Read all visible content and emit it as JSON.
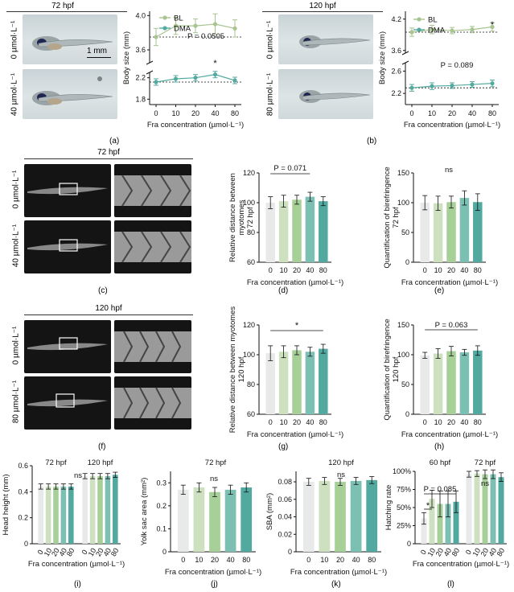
{
  "colors": {
    "c0": "#e8e9e9",
    "c1": "#cde0c0",
    "c2": "#a7cf98",
    "c3": "#7cc0b3",
    "c4": "#52a9a0",
    "bl": "#a8c48f",
    "dma": "#55aaa0"
  },
  "photos": {
    "a": {
      "title": "72 hpf",
      "row1": "0 µmol·L⁻¹",
      "row2": "40 µmol·L⁻¹",
      "scalebar": "1 mm"
    },
    "b": {
      "title": "120 hpf",
      "row1": "0 µmol·L⁻¹",
      "row2": "80 µmol·L⁻¹"
    },
    "c": {
      "title": "72 hpf",
      "row1": "0 µmol·L⁻¹",
      "row2": "40 µmol·L⁻¹"
    },
    "f": {
      "title": "120 hpf",
      "row1": "0 µmol·L⁻¹",
      "row2": "80 µmol·L⁻¹"
    }
  },
  "panel_labels": {
    "a": "(a)",
    "b": "(b)",
    "c": "(c)",
    "d": "(d)",
    "e": "(e)",
    "f": "(f)",
    "g": "(g)",
    "h": "(h)",
    "i": "(i)",
    "j": "(j)",
    "k": "(k)",
    "l": "(l)"
  },
  "chart_data": [
    {
      "id": "a",
      "type": "line",
      "title": "",
      "xlabel": "Fra concentration (µmol·L⁻¹)",
      "ylabel": "Body size (mm)",
      "categories": [
        "0",
        "10",
        "20",
        "40",
        "80"
      ],
      "yticks": [
        "1.8",
        "2.2",
        "3.6",
        "4.0"
      ],
      "legend": [
        "BL",
        "DMA"
      ],
      "series": [
        {
          "name": "BL",
          "values": [
            3.75,
            3.88,
            3.88,
            3.9,
            3.85
          ],
          "errors": [
            0.1,
            0.1,
            0.08,
            0.12,
            0.1
          ]
        },
        {
          "name": "DMA",
          "values": [
            2.12,
            2.18,
            2.2,
            2.26,
            2.15
          ],
          "errors": [
            0.06,
            0.06,
            0.06,
            0.06,
            0.06
          ]
        }
      ],
      "annotations": [
        {
          "text": "P = 0.0505"
        },
        {
          "text": "*"
        }
      ]
    },
    {
      "id": "b",
      "type": "line",
      "xlabel": "Fra concentration (µmol·L⁻¹)",
      "ylabel": "Body size (mm)",
      "categories": [
        "0",
        "10",
        "20",
        "40",
        "80"
      ],
      "yticks": [
        "2.2",
        "2.6",
        "3.6",
        "4.2"
      ],
      "legend": [
        "BL",
        "DMA"
      ],
      "series": [
        {
          "name": "BL",
          "values": [
            3.95,
            4.0,
            3.98,
            4.0,
            4.05
          ],
          "errors": [
            0.08,
            0.08,
            0.06,
            0.06,
            0.08
          ]
        },
        {
          "name": "DMA",
          "values": [
            2.3,
            2.33,
            2.34,
            2.36,
            2.38
          ],
          "errors": [
            0.06,
            0.06,
            0.05,
            0.05,
            0.06
          ]
        }
      ],
      "annotations": [
        {
          "text": "*"
        },
        {
          "text": "P = 0.089"
        }
      ]
    },
    {
      "id": "d",
      "type": "bar",
      "xlabel": "Fra concentration (µmol·L⁻¹)",
      "ylabel": "Relative distance between myotomes 72 hpf",
      "categories": [
        "0",
        "10",
        "20",
        "40",
        "80"
      ],
      "yticks": [
        "60",
        "80",
        "100",
        "120"
      ],
      "ylim": [
        60,
        120
      ],
      "values": [
        100,
        101,
        102,
        104,
        101
      ],
      "errors": [
        4,
        4,
        3,
        3,
        3
      ],
      "annotations": [
        {
          "text": "P = 0.071"
        }
      ]
    },
    {
      "id": "e",
      "type": "bar",
      "xlabel": "Fra concentration (µmol·L⁻¹)",
      "ylabel": "Quantification of birefringence 72 hpf",
      "categories": [
        "0",
        "10",
        "20",
        "40",
        "80"
      ],
      "yticks": [
        "0",
        "50",
        "100",
        "150"
      ],
      "ylim": [
        0,
        150
      ],
      "values": [
        100,
        99,
        101,
        108,
        101
      ],
      "errors": [
        12,
        12,
        10,
        12,
        14
      ],
      "annotations": [
        {
          "text": "ns"
        }
      ]
    },
    {
      "id": "g",
      "type": "bar",
      "xlabel": "Fra concentration (µmol·L⁻¹)",
      "ylabel": "Relative distance between myotomes 120 hpf",
      "categories": [
        "0",
        "10",
        "20",
        "40",
        "80"
      ],
      "yticks": [
        "60",
        "80",
        "100",
        "120"
      ],
      "ylim": [
        60,
        120
      ],
      "values": [
        101,
        102,
        103,
        102,
        104
      ],
      "errors": [
        5,
        4,
        3,
        3,
        3
      ],
      "annotations": [
        {
          "text": "*"
        }
      ]
    },
    {
      "id": "h",
      "type": "bar",
      "xlabel": "Fra concentration (µmol·L⁻¹)",
      "ylabel": "Quantification of birefringence 120 hpf",
      "categories": [
        "0",
        "10",
        "20",
        "40",
        "80"
      ],
      "yticks": [
        "0",
        "50",
        "100",
        "150"
      ],
      "ylim": [
        0,
        150
      ],
      "values": [
        99,
        102,
        106,
        104,
        107
      ],
      "errors": [
        5,
        8,
        8,
        5,
        8
      ],
      "annotations": [
        {
          "text": "P = 0.063"
        }
      ]
    },
    {
      "id": "i",
      "type": "bar",
      "xlabel": "Fra concentration (µmol·L⁻¹)",
      "ylabel": "Head height (mm)",
      "categories": [
        "0",
        "10",
        "20",
        "40",
        "80",
        "0",
        "10",
        "20",
        "40",
        "80"
      ],
      "yticks": [
        "0",
        "0.2",
        "0.4",
        "0.6"
      ],
      "ylim": [
        0,
        0.6
      ],
      "group_titles": [
        "72 hpf",
        "120 hpf"
      ],
      "values": [
        0.44,
        0.44,
        0.44,
        0.44,
        0.44,
        0.52,
        0.52,
        0.52,
        0.52,
        0.53
      ],
      "errors": [
        0.02,
        0.02,
        0.02,
        0.02,
        0.02,
        0.02,
        0.02,
        0.02,
        0.02,
        0.02
      ],
      "annotations": [
        {
          "text": "ns"
        }
      ]
    },
    {
      "id": "j",
      "type": "bar",
      "title": "72 hpf",
      "xlabel": "Fra concentration (µmol·L⁻¹)",
      "ylabel": "Yolk sac area (mm²)",
      "categories": [
        "0",
        "10",
        "20",
        "40",
        "80"
      ],
      "yticks": [
        "0",
        "0.1",
        "0.2",
        "0.3"
      ],
      "ylim": [
        0,
        0.35
      ],
      "values": [
        0.27,
        0.28,
        0.26,
        0.27,
        0.28
      ],
      "errors": [
        0.02,
        0.02,
        0.02,
        0.02,
        0.02
      ],
      "annotations": [
        {
          "text": "ns"
        }
      ]
    },
    {
      "id": "k",
      "type": "bar",
      "title": "120 hpf",
      "xlabel": "Fra concentration (µmol·L⁻¹)",
      "ylabel": "SBA (mm²)",
      "categories": [
        "0",
        "10",
        "20",
        "40",
        "80"
      ],
      "yticks": [
        "0",
        "0.02",
        "0.04",
        "0.06",
        "0.08"
      ],
      "ylim": [
        0,
        0.092
      ],
      "values": [
        0.08,
        0.081,
        0.08,
        0.081,
        0.082
      ],
      "errors": [
        0.004,
        0.004,
        0.004,
        0.004,
        0.004
      ],
      "annotations": [
        {
          "text": "ns"
        }
      ]
    },
    {
      "id": "l",
      "type": "bar",
      "xlabel": "Fra concentration (µmol·L⁻¹)",
      "ylabel": "Hatching rate",
      "categories": [
        "0",
        "10",
        "20",
        "40",
        "80",
        "0",
        "10",
        "20",
        "40",
        "80"
      ],
      "yticks": [
        "0",
        "25%",
        "50%",
        "75%",
        "100%"
      ],
      "ylim": [
        0,
        100
      ],
      "group_titles": [
        "60 hpf",
        "72 hpf"
      ],
      "values": [
        35,
        62,
        55,
        55,
        58,
        96,
        97,
        96,
        96,
        92
      ],
      "errors": [
        8,
        12,
        18,
        18,
        15,
        4,
        4,
        6,
        6,
        6
      ],
      "annotations": [
        {
          "text": "P = 0.085"
        },
        {
          "text": "*"
        },
        {
          "text": "ns"
        }
      ]
    }
  ]
}
